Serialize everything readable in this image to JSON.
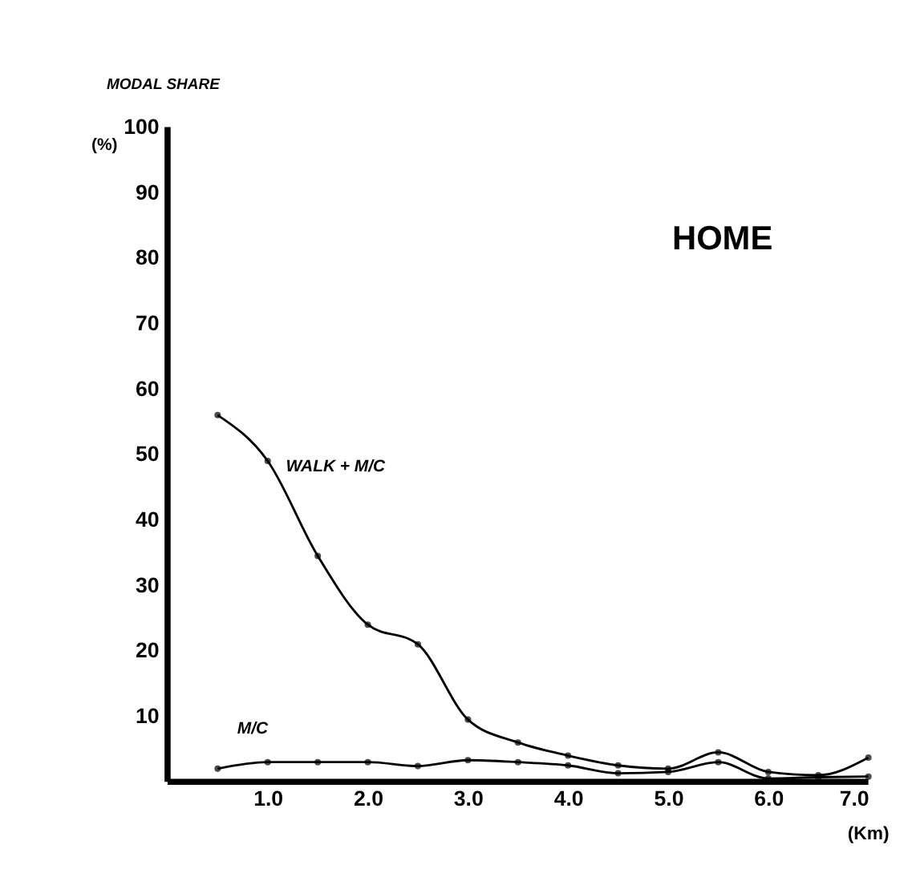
{
  "chart_data": {
    "type": "line",
    "title": "HOME",
    "ylabel": "MODAL  SHARE",
    "xlabel": "(Km)",
    "annotations": [
      "(%)"
    ],
    "x": [
      0.5,
      1.0,
      1.5,
      2.0,
      2.5,
      3.0,
      3.5,
      4.0,
      4.5,
      5.0,
      5.5,
      6.0,
      6.5,
      7.0
    ],
    "series": [
      {
        "name": "WALK + M/C",
        "color": "#000000",
        "values": [
          56,
          49,
          34.5,
          24,
          21,
          9.5,
          6,
          4,
          2.5,
          2,
          4.5,
          1.5,
          1,
          3.7
        ]
      },
      {
        "name": "M/C",
        "color": "#000000",
        "values": [
          2,
          3,
          3,
          3,
          2.4,
          3.3,
          3,
          2.5,
          1.3,
          1.5,
          3,
          0.5,
          0.7,
          0.8
        ]
      }
    ],
    "xlim": [
      0,
      7
    ],
    "ylim": [
      0,
      100
    ],
    "xticks": [
      {
        "value": 1,
        "label": "1.0"
      },
      {
        "value": 2,
        "label": "2.0"
      },
      {
        "value": 3,
        "label": "3.0"
      },
      {
        "value": 4,
        "label": "4.0"
      },
      {
        "value": 5,
        "label": "5.0"
      },
      {
        "value": 6,
        "label": "6.0"
      },
      {
        "value": 7,
        "label": "7.0"
      }
    ],
    "yticks": [
      10,
      20,
      30,
      40,
      50,
      60,
      70,
      80,
      90,
      100
    ],
    "grid": false,
    "marker": "circle",
    "line_style": "solid"
  }
}
